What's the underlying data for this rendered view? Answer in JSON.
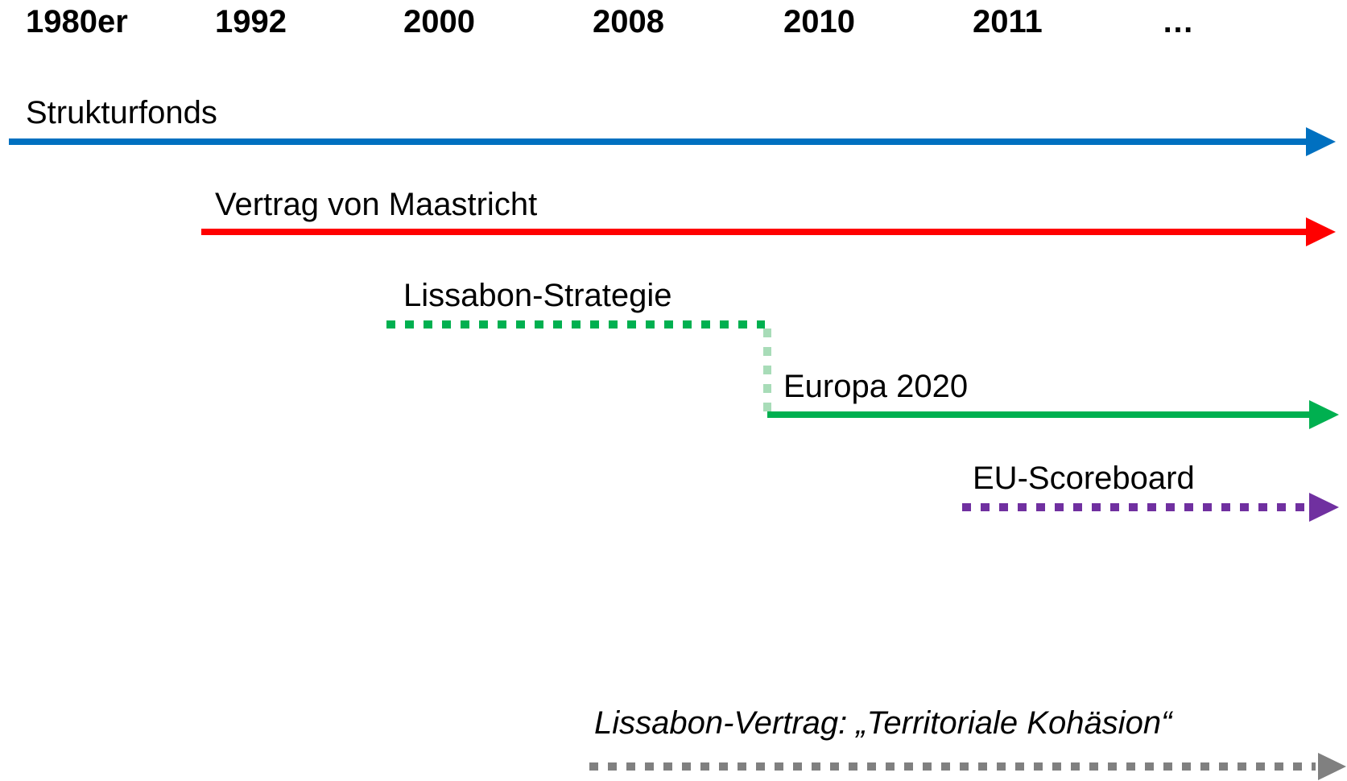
{
  "timeline": {
    "years": [
      "1980er",
      "1992",
      "2000",
      "2008",
      "2010",
      "2011",
      "…"
    ],
    "tracks": [
      {
        "label": "Strukturfonds"
      },
      {
        "label": "Vertrag von Maastricht"
      },
      {
        "label": "Lissabon-Strategie"
      },
      {
        "label": "Europa 2020"
      },
      {
        "label": "EU-Scoreboard"
      },
      {
        "label": "Lissabon-Vertrag: „Territoriale Kohäsion“"
      }
    ]
  }
}
